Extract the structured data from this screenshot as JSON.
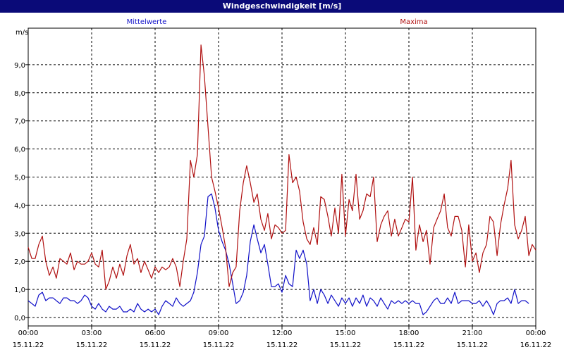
{
  "window": {
    "title": "Windgeschwindigkeit [m/s]"
  },
  "colors": {
    "mean": "#1010c8",
    "max": "#b01010",
    "titlebar": "#0a0a78",
    "grid": "#000000"
  },
  "chart_data": {
    "type": "line",
    "title": "Windgeschwindigkeit [m/s]",
    "ylabel": "m/s",
    "xlabel": "",
    "ylim": [
      -0.3,
      10.3
    ],
    "yticks": [
      {
        "value": 0,
        "label": "0,0"
      },
      {
        "value": 1,
        "label": "1,0"
      },
      {
        "value": 2,
        "label": "2,0"
      },
      {
        "value": 3,
        "label": "3,0"
      },
      {
        "value": 4,
        "label": "4,0"
      },
      {
        "value": 5,
        "label": "5,0"
      },
      {
        "value": 6,
        "label": "6,0"
      },
      {
        "value": 7,
        "label": "7,0"
      },
      {
        "value": 8,
        "label": "8,0"
      },
      {
        "value": 9,
        "label": "9,0"
      }
    ],
    "xlim": [
      0,
      24
    ],
    "xticks": [
      {
        "value": 0,
        "time": "00:00",
        "date": "15.11.22"
      },
      {
        "value": 3,
        "time": "03:00",
        "date": "15.11.22"
      },
      {
        "value": 6,
        "time": "06:00",
        "date": "15.11.22"
      },
      {
        "value": 9,
        "time": "09:00",
        "date": "15.11.22"
      },
      {
        "value": 12,
        "time": "12:00",
        "date": "15.11.22"
      },
      {
        "value": 15,
        "time": "15:00",
        "date": "15.11.22"
      },
      {
        "value": 18,
        "time": "18:00",
        "date": "15.11.22"
      },
      {
        "value": 21,
        "time": "21:00",
        "date": "15.11.22"
      },
      {
        "value": 24,
        "time": "00:00",
        "date": "16.11.22"
      }
    ],
    "grid": true,
    "series": [
      {
        "name": "Mittelwerte",
        "color": "#1010c8",
        "points": [
          [
            0.0,
            0.6
          ],
          [
            0.17,
            0.5
          ],
          [
            0.33,
            0.4
          ],
          [
            0.5,
            0.8
          ],
          [
            0.67,
            0.9
          ],
          [
            0.83,
            0.6
          ],
          [
            1.0,
            0.7
          ],
          [
            1.17,
            0.7
          ],
          [
            1.33,
            0.6
          ],
          [
            1.5,
            0.5
          ],
          [
            1.67,
            0.7
          ],
          [
            1.83,
            0.7
          ],
          [
            2.0,
            0.6
          ],
          [
            2.17,
            0.6
          ],
          [
            2.33,
            0.5
          ],
          [
            2.5,
            0.6
          ],
          [
            2.67,
            0.8
          ],
          [
            2.83,
            0.7
          ],
          [
            3.0,
            0.4
          ],
          [
            3.17,
            0.3
          ],
          [
            3.33,
            0.5
          ],
          [
            3.5,
            0.3
          ],
          [
            3.67,
            0.2
          ],
          [
            3.83,
            0.4
          ],
          [
            4.0,
            0.3
          ],
          [
            4.17,
            0.3
          ],
          [
            4.33,
            0.4
          ],
          [
            4.5,
            0.2
          ],
          [
            4.67,
            0.2
          ],
          [
            4.83,
            0.3
          ],
          [
            5.0,
            0.2
          ],
          [
            5.17,
            0.5
          ],
          [
            5.33,
            0.3
          ],
          [
            5.5,
            0.2
          ],
          [
            5.67,
            0.3
          ],
          [
            5.83,
            0.2
          ],
          [
            6.0,
            0.3
          ],
          [
            6.17,
            0.1
          ],
          [
            6.33,
            0.4
          ],
          [
            6.5,
            0.6
          ],
          [
            6.67,
            0.5
          ],
          [
            6.83,
            0.4
          ],
          [
            7.0,
            0.7
          ],
          [
            7.17,
            0.5
          ],
          [
            7.33,
            0.4
          ],
          [
            7.5,
            0.5
          ],
          [
            7.67,
            0.6
          ],
          [
            7.83,
            0.9
          ],
          [
            8.0,
            1.6
          ],
          [
            8.17,
            2.6
          ],
          [
            8.33,
            2.9
          ],
          [
            8.5,
            4.3
          ],
          [
            8.67,
            4.4
          ],
          [
            8.83,
            3.9
          ],
          [
            9.0,
            3.1
          ],
          [
            9.17,
            2.7
          ],
          [
            9.33,
            2.4
          ],
          [
            9.5,
            1.9
          ],
          [
            9.67,
            1.2
          ],
          [
            9.83,
            0.5
          ],
          [
            10.0,
            0.6
          ],
          [
            10.17,
            0.9
          ],
          [
            10.33,
            1.5
          ],
          [
            10.5,
            2.7
          ],
          [
            10.67,
            3.3
          ],
          [
            10.83,
            2.8
          ],
          [
            11.0,
            2.3
          ],
          [
            11.17,
            2.6
          ],
          [
            11.33,
            1.9
          ],
          [
            11.5,
            1.1
          ],
          [
            11.67,
            1.1
          ],
          [
            11.83,
            1.2
          ],
          [
            12.0,
            0.9
          ],
          [
            12.17,
            1.5
          ],
          [
            12.33,
            1.2
          ],
          [
            12.5,
            1.1
          ],
          [
            12.67,
            2.4
          ],
          [
            12.83,
            2.1
          ],
          [
            13.0,
            2.4
          ],
          [
            13.17,
            1.9
          ],
          [
            13.33,
            0.6
          ],
          [
            13.5,
            1.0
          ],
          [
            13.67,
            0.5
          ],
          [
            13.83,
            1.0
          ],
          [
            14.0,
            0.8
          ],
          [
            14.17,
            0.5
          ],
          [
            14.33,
            0.8
          ],
          [
            14.5,
            0.6
          ],
          [
            14.67,
            0.4
          ],
          [
            14.83,
            0.7
          ],
          [
            15.0,
            0.5
          ],
          [
            15.17,
            0.7
          ],
          [
            15.33,
            0.4
          ],
          [
            15.5,
            0.7
          ],
          [
            15.67,
            0.5
          ],
          [
            15.83,
            0.8
          ],
          [
            16.0,
            0.4
          ],
          [
            16.17,
            0.7
          ],
          [
            16.33,
            0.6
          ],
          [
            16.5,
            0.4
          ],
          [
            16.67,
            0.7
          ],
          [
            16.83,
            0.5
          ],
          [
            17.0,
            0.3
          ],
          [
            17.17,
            0.6
          ],
          [
            17.33,
            0.5
          ],
          [
            17.5,
            0.6
          ],
          [
            17.67,
            0.5
          ],
          [
            17.83,
            0.6
          ],
          [
            18.0,
            0.5
          ],
          [
            18.17,
            0.6
          ],
          [
            18.33,
            0.5
          ],
          [
            18.5,
            0.5
          ],
          [
            18.67,
            0.1
          ],
          [
            18.83,
            0.2
          ],
          [
            19.0,
            0.4
          ],
          [
            19.17,
            0.6
          ],
          [
            19.33,
            0.7
          ],
          [
            19.5,
            0.5
          ],
          [
            19.67,
            0.5
          ],
          [
            19.83,
            0.7
          ],
          [
            20.0,
            0.5
          ],
          [
            20.17,
            0.9
          ],
          [
            20.33,
            0.5
          ],
          [
            20.5,
            0.6
          ],
          [
            20.67,
            0.6
          ],
          [
            20.83,
            0.6
          ],
          [
            21.0,
            0.5
          ],
          [
            21.17,
            0.5
          ],
          [
            21.33,
            0.6
          ],
          [
            21.5,
            0.4
          ],
          [
            21.67,
            0.6
          ],
          [
            21.83,
            0.4
          ],
          [
            22.0,
            0.1
          ],
          [
            22.17,
            0.5
          ],
          [
            22.33,
            0.6
          ],
          [
            22.5,
            0.6
          ],
          [
            22.67,
            0.7
          ],
          [
            22.83,
            0.5
          ],
          [
            23.0,
            1.0
          ],
          [
            23.17,
            0.5
          ],
          [
            23.33,
            0.6
          ],
          [
            23.5,
            0.6
          ],
          [
            23.67,
            0.5
          ]
        ]
      },
      {
        "name": "Maxima",
        "color": "#b01010",
        "points": [
          [
            0.0,
            2.5
          ],
          [
            0.17,
            2.1
          ],
          [
            0.33,
            2.1
          ],
          [
            0.5,
            2.6
          ],
          [
            0.67,
            2.9
          ],
          [
            0.83,
            2.0
          ],
          [
            1.0,
            1.5
          ],
          [
            1.17,
            1.8
          ],
          [
            1.33,
            1.4
          ],
          [
            1.5,
            2.1
          ],
          [
            1.67,
            2.0
          ],
          [
            1.83,
            1.9
          ],
          [
            2.0,
            2.3
          ],
          [
            2.17,
            1.7
          ],
          [
            2.33,
            2.0
          ],
          [
            2.5,
            1.9
          ],
          [
            2.67,
            1.9
          ],
          [
            2.83,
            2.0
          ],
          [
            3.0,
            2.3
          ],
          [
            3.17,
            1.9
          ],
          [
            3.33,
            1.8
          ],
          [
            3.5,
            2.4
          ],
          [
            3.67,
            1.0
          ],
          [
            3.83,
            1.3
          ],
          [
            4.0,
            1.8
          ],
          [
            4.17,
            1.4
          ],
          [
            4.33,
            1.9
          ],
          [
            4.5,
            1.5
          ],
          [
            4.67,
            2.2
          ],
          [
            4.83,
            2.6
          ],
          [
            5.0,
            1.9
          ],
          [
            5.17,
            2.1
          ],
          [
            5.33,
            1.6
          ],
          [
            5.5,
            2.0
          ],
          [
            5.67,
            1.7
          ],
          [
            5.83,
            1.4
          ],
          [
            6.0,
            1.8
          ],
          [
            6.17,
            1.6
          ],
          [
            6.33,
            1.8
          ],
          [
            6.5,
            1.7
          ],
          [
            6.67,
            1.8
          ],
          [
            6.83,
            2.1
          ],
          [
            7.0,
            1.8
          ],
          [
            7.17,
            1.1
          ],
          [
            7.33,
            2.0
          ],
          [
            7.5,
            2.8
          ],
          [
            7.67,
            5.6
          ],
          [
            7.83,
            5.0
          ],
          [
            8.0,
            5.8
          ],
          [
            8.17,
            9.7
          ],
          [
            8.33,
            8.6
          ],
          [
            8.5,
            6.8
          ],
          [
            8.67,
            5.0
          ],
          [
            8.83,
            4.5
          ],
          [
            9.0,
            3.9
          ],
          [
            9.17,
            3.2
          ],
          [
            9.33,
            2.5
          ],
          [
            9.5,
            1.1
          ],
          [
            9.67,
            1.6
          ],
          [
            9.83,
            1.8
          ],
          [
            10.0,
            3.8
          ],
          [
            10.17,
            4.8
          ],
          [
            10.33,
            5.4
          ],
          [
            10.5,
            4.8
          ],
          [
            10.67,
            4.1
          ],
          [
            10.83,
            4.4
          ],
          [
            11.0,
            3.5
          ],
          [
            11.17,
            3.1
          ],
          [
            11.33,
            3.7
          ],
          [
            11.5,
            2.8
          ],
          [
            11.67,
            3.3
          ],
          [
            11.83,
            3.2
          ],
          [
            12.0,
            3.0
          ],
          [
            12.17,
            3.1
          ],
          [
            12.33,
            5.8
          ],
          [
            12.5,
            4.8
          ],
          [
            12.67,
            5.0
          ],
          [
            12.83,
            4.5
          ],
          [
            13.0,
            3.4
          ],
          [
            13.17,
            2.8
          ],
          [
            13.33,
            2.6
          ],
          [
            13.5,
            3.2
          ],
          [
            13.67,
            2.6
          ],
          [
            13.83,
            4.3
          ],
          [
            14.0,
            4.2
          ],
          [
            14.17,
            3.6
          ],
          [
            14.33,
            2.9
          ],
          [
            14.5,
            3.9
          ],
          [
            14.67,
            3.0
          ],
          [
            14.83,
            5.1
          ],
          [
            15.0,
            2.9
          ],
          [
            15.17,
            4.2
          ],
          [
            15.33,
            3.8
          ],
          [
            15.5,
            5.1
          ],
          [
            15.67,
            3.5
          ],
          [
            15.83,
            3.8
          ],
          [
            16.0,
            4.4
          ],
          [
            16.17,
            4.3
          ],
          [
            16.33,
            5.0
          ],
          [
            16.5,
            2.7
          ],
          [
            16.67,
            3.3
          ],
          [
            16.83,
            3.6
          ],
          [
            17.0,
            3.8
          ],
          [
            17.17,
            2.9
          ],
          [
            17.33,
            3.5
          ],
          [
            17.5,
            2.9
          ],
          [
            17.67,
            3.2
          ],
          [
            17.83,
            3.5
          ],
          [
            18.0,
            3.4
          ],
          [
            18.17,
            5.0
          ],
          [
            18.33,
            2.4
          ],
          [
            18.5,
            3.3
          ],
          [
            18.67,
            2.7
          ],
          [
            18.83,
            3.1
          ],
          [
            19.0,
            1.9
          ],
          [
            19.17,
            3.2
          ],
          [
            19.33,
            3.5
          ],
          [
            19.5,
            3.8
          ],
          [
            19.67,
            4.4
          ],
          [
            19.83,
            3.2
          ],
          [
            20.0,
            2.9
          ],
          [
            20.17,
            3.6
          ],
          [
            20.33,
            3.6
          ],
          [
            20.5,
            3.1
          ],
          [
            20.67,
            1.8
          ],
          [
            20.83,
            3.3
          ],
          [
            21.0,
            2.0
          ],
          [
            21.17,
            2.3
          ],
          [
            21.33,
            1.6
          ],
          [
            21.5,
            2.3
          ],
          [
            21.67,
            2.6
          ],
          [
            21.83,
            3.6
          ],
          [
            22.0,
            3.4
          ],
          [
            22.17,
            2.2
          ],
          [
            22.33,
            3.3
          ],
          [
            22.5,
            4.0
          ],
          [
            22.67,
            4.6
          ],
          [
            22.83,
            5.6
          ],
          [
            23.0,
            3.3
          ],
          [
            23.17,
            2.8
          ],
          [
            23.33,
            3.1
          ],
          [
            23.5,
            3.6
          ],
          [
            23.67,
            2.2
          ],
          [
            23.83,
            2.6
          ],
          [
            24.0,
            2.4
          ]
        ]
      }
    ]
  }
}
